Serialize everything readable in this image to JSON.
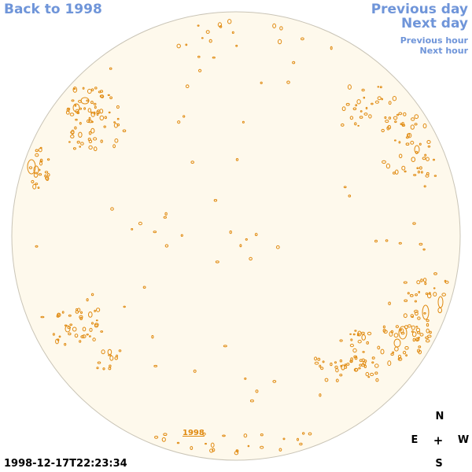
{
  "nav": {
    "back": "Back to 1998",
    "previous_day": "Previous day",
    "next_day": "Next day",
    "previous_hour": "Previous hour",
    "next_hour": "Next hour"
  },
  "compass": {
    "north": "N",
    "east": "E",
    "center": "+",
    "west": "W",
    "south": "S"
  },
  "timestamp": "1998-12-17T22:23:34",
  "year_label": "1998",
  "colors": {
    "link": "#6f95d9",
    "disk_fill": "#fef9ec",
    "disk_border": "#c9c4b6",
    "contour": "#e08a10"
  }
}
